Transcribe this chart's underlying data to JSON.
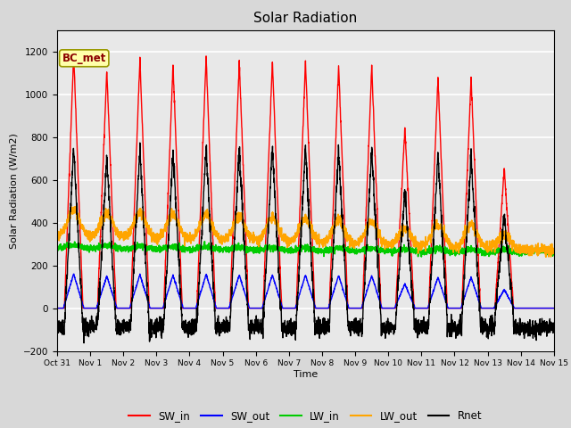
{
  "title": "Solar Radiation",
  "ylabel": "Solar Radiation (W/m2)",
  "xlabel": "Time",
  "ylim": [
    -200,
    1300
  ],
  "yticks": [
    -200,
    0,
    200,
    400,
    600,
    800,
    1000,
    1200
  ],
  "xtick_labels": [
    "Oct 31",
    "Nov 1",
    "Nov 2",
    "Nov 3",
    "Nov 4",
    "Nov 5",
    "Nov 6",
    "Nov 7",
    "Nov 8",
    "Nov 9",
    "Nov 10",
    "Nov 11",
    "Nov 12",
    "Nov 13",
    "Nov 14",
    "Nov 15"
  ],
  "annotation_text": "BC_met",
  "bg_color": "#d8d8d8",
  "plot_bg_color": "#e8e8e8",
  "colors": {
    "SW_in": "#ff0000",
    "SW_out": "#0000ff",
    "LW_in": "#00cc00",
    "LW_out": "#ffa500",
    "Rnet": "#000000"
  },
  "linewidths": {
    "SW_in": 1.0,
    "SW_out": 1.0,
    "LW_in": 1.2,
    "LW_out": 1.2,
    "Rnet": 1.0
  },
  "n_days": 15,
  "dt": 0.005
}
